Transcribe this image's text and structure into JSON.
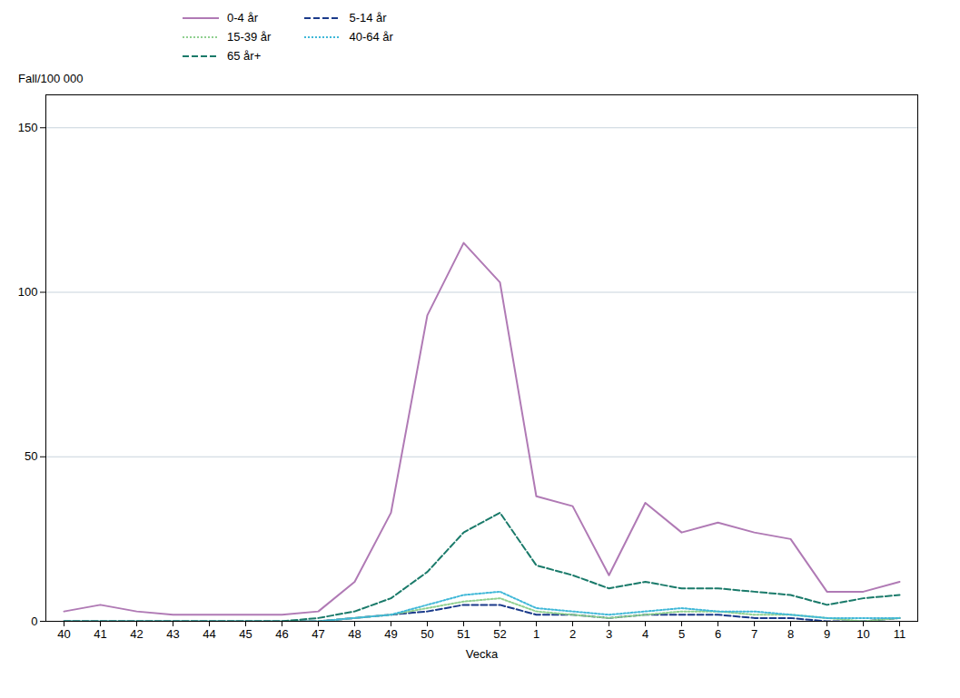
{
  "chart_data": {
    "type": "line",
    "xlabel": "Vecka",
    "ylabel": "Fall/100 000",
    "categories": [
      "40",
      "41",
      "42",
      "43",
      "44",
      "45",
      "46",
      "47",
      "48",
      "49",
      "50",
      "51",
      "52",
      "1",
      "2",
      "3",
      "4",
      "5",
      "6",
      "7",
      "8",
      "9",
      "10",
      "11"
    ],
    "series": [
      {
        "name": "0-4 år",
        "color": "#b07ab5",
        "line_style": "solid",
        "values": [
          3,
          5,
          3,
          2,
          2,
          2,
          2,
          3,
          12,
          33,
          93,
          115,
          103,
          38,
          35,
          14,
          36,
          27,
          30,
          27,
          25,
          9,
          9,
          12
        ]
      },
      {
        "name": "5-14 år",
        "color": "#1a3a8a",
        "line_style": "dashed",
        "values": [
          0,
          0,
          0,
          0,
          0,
          0,
          0,
          0,
          1,
          2,
          3,
          5,
          5,
          2,
          2,
          1,
          2,
          2,
          2,
          1,
          1,
          0,
          0,
          1
        ]
      },
      {
        "name": "15-39 år",
        "color": "#90d090",
        "line_style": "dotted",
        "values": [
          0,
          0,
          0,
          0,
          0,
          0,
          0,
          0,
          1,
          2,
          4,
          6,
          7,
          3,
          2,
          1,
          2,
          3,
          3,
          2,
          2,
          1,
          0,
          1
        ]
      },
      {
        "name": "40-64 år",
        "color": "#40b8d8",
        "line_style": "dotted",
        "values": [
          0,
          0,
          0,
          0,
          0,
          0,
          0,
          0,
          1,
          2,
          5,
          8,
          9,
          4,
          3,
          2,
          3,
          4,
          3,
          3,
          2,
          1,
          1,
          1
        ]
      },
      {
        "name": "65 år+",
        "color": "#1a7a6a",
        "line_style": "dashed",
        "values": [
          0,
          0,
          0,
          0,
          0,
          0,
          0,
          1,
          3,
          7,
          15,
          27,
          33,
          17,
          14,
          10,
          12,
          10,
          10,
          9,
          8,
          5,
          7,
          8
        ]
      }
    ],
    "ylim": [
      0,
      160
    ],
    "yticks": [
      0,
      50,
      100,
      150
    ],
    "grid": true,
    "legend": "top"
  }
}
